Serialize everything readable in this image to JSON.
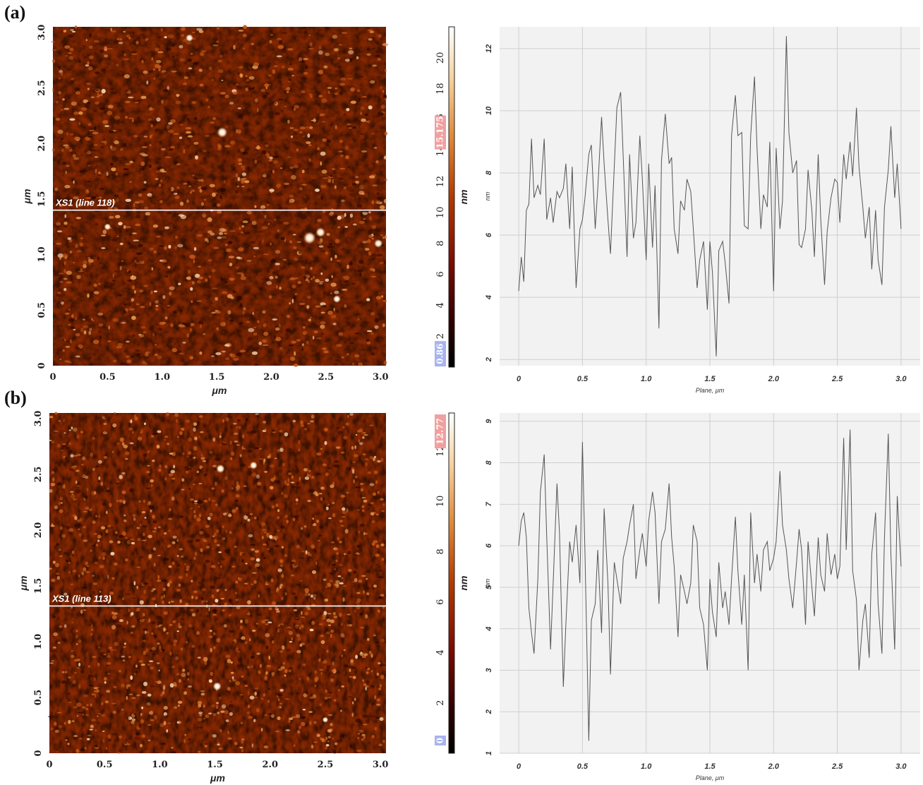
{
  "figure": {
    "panels": [
      {
        "label": "(a)",
        "afm": {
          "x_ticks": [
            "0",
            "0.5",
            "1.0",
            "1.5",
            "2.0",
            "2.5",
            "3.0"
          ],
          "y_ticks": [
            "0",
            "0.5",
            "1.0",
            "1.5",
            "2.0",
            "2.5",
            "3.0"
          ],
          "xlabel": "μm",
          "ylabel": "μm",
          "line_label": "XS1 (line 118)",
          "line_position_um": 1.4,
          "seed": 11,
          "bright_spots": [
            {
              "x_um": 1.55,
              "y_um": 2.1,
              "size": 1.2
            },
            {
              "x_um": 2.35,
              "y_um": 1.15,
              "size": 1.4
            },
            {
              "x_um": 2.45,
              "y_um": 1.2,
              "size": 1.1
            },
            {
              "x_um": 2.98,
              "y_um": 1.1,
              "size": 1.0
            },
            {
              "x_um": 1.25,
              "y_um": 2.95,
              "size": 0.9
            },
            {
              "x_um": 0.5,
              "y_um": 1.25,
              "size": 0.8
            },
            {
              "x_um": 2.6,
              "y_um": 0.6,
              "size": 0.9
            }
          ]
        },
        "colorbar": {
          "ticks": [
            "2",
            "4",
            "6",
            "8",
            "10",
            "12",
            "14",
            "16",
            "18",
            "20"
          ],
          "label": "nm",
          "max_value": 22,
          "high_marker": "15.175",
          "low_marker": "0.86"
        },
        "profile_chart": {
          "xlabel": "Plane, μm",
          "ylabel": "nm",
          "x_ticks": [
            "0",
            "0.5",
            "1.0",
            "1.5",
            "2.0",
            "2.5",
            "3.0"
          ],
          "y_ticks": [
            "2",
            "4",
            "6",
            "8",
            "10",
            "12"
          ]
        }
      },
      {
        "label": "(b)",
        "afm": {
          "x_ticks": [
            "0",
            "0.5",
            "1.0",
            "1.5",
            "2.0",
            "2.5",
            "3.0"
          ],
          "y_ticks": [
            "0",
            "0.5",
            "1.0",
            "1.5",
            "2.0",
            "2.5",
            "3.0"
          ],
          "xlabel": "μm",
          "ylabel": "μm",
          "line_label": "XS1 (line 113)",
          "line_position_um": 1.32,
          "seed": 29,
          "bright_spots": [
            {
              "x_um": 1.55,
              "y_um": 2.55,
              "size": 1.0
            },
            {
              "x_um": 1.85,
              "y_um": 2.58,
              "size": 0.9
            },
            {
              "x_um": 1.52,
              "y_um": 0.6,
              "size": 1.0
            },
            {
              "x_um": 2.5,
              "y_um": 0.3,
              "size": 0.7
            }
          ]
        },
        "colorbar": {
          "ticks": [
            "2",
            "4",
            "6",
            "8",
            "10",
            "12"
          ],
          "label": "nm",
          "max_value": 13.5,
          "high_marker": "12.77",
          "low_marker": "0"
        },
        "profile_chart": {
          "xlabel": "Plane, μm",
          "ylabel": "nm",
          "x_ticks": [
            "0",
            "0.5",
            "1.0",
            "1.5",
            "2.0",
            "2.5",
            "3.0"
          ],
          "y_ticks": [
            "1",
            "2",
            "3",
            "4",
            "5",
            "6",
            "7",
            "8",
            "9"
          ]
        }
      }
    ]
  },
  "chart_data": [
    {
      "type": "line",
      "title": "",
      "xlabel": "Plane, μm",
      "ylabel": "nm",
      "xlim": [
        0,
        3.0
      ],
      "ylim": [
        1.8,
        12.7
      ],
      "grid": true,
      "x": [
        0.0,
        0.02,
        0.04,
        0.06,
        0.08,
        0.1,
        0.12,
        0.15,
        0.17,
        0.2,
        0.22,
        0.25,
        0.27,
        0.3,
        0.32,
        0.35,
        0.37,
        0.4,
        0.42,
        0.45,
        0.48,
        0.5,
        0.52,
        0.55,
        0.57,
        0.6,
        0.62,
        0.65,
        0.67,
        0.7,
        0.72,
        0.75,
        0.77,
        0.8,
        0.82,
        0.85,
        0.87,
        0.9,
        0.92,
        0.95,
        0.97,
        1.0,
        1.02,
        1.05,
        1.07,
        1.1,
        1.12,
        1.15,
        1.18,
        1.2,
        1.22,
        1.25,
        1.27,
        1.3,
        1.32,
        1.35,
        1.37,
        1.4,
        1.42,
        1.45,
        1.48,
        1.5,
        1.52,
        1.55,
        1.57,
        1.6,
        1.62,
        1.65,
        1.67,
        1.7,
        1.72,
        1.75,
        1.77,
        1.8,
        1.82,
        1.85,
        1.87,
        1.9,
        1.92,
        1.95,
        1.97,
        2.0,
        2.02,
        2.05,
        2.07,
        2.1,
        2.12,
        2.15,
        2.18,
        2.2,
        2.22,
        2.25,
        2.27,
        2.3,
        2.32,
        2.35,
        2.37,
        2.4,
        2.42,
        2.45,
        2.48,
        2.5,
        2.52,
        2.55,
        2.57,
        2.6,
        2.62,
        2.65,
        2.67,
        2.7,
        2.72,
        2.75,
        2.77,
        2.8,
        2.82,
        2.85,
        2.87,
        2.9,
        2.92,
        2.95,
        2.97,
        3.0
      ],
      "series": [
        {
          "values": [
            4.2,
            5.3,
            4.5,
            6.8,
            7.0,
            9.1,
            7.2,
            7.6,
            7.3,
            9.1,
            6.5,
            7.2,
            6.4,
            7.4,
            7.2,
            7.5,
            8.3,
            6.2,
            8.2,
            4.3,
            6.2,
            6.5,
            7.2,
            8.6,
            8.9,
            6.2,
            7.5,
            9.8,
            8.3,
            6.5,
            5.4,
            8.2,
            10.1,
            10.6,
            8.5,
            5.3,
            8.6,
            5.9,
            6.4,
            9.2,
            7.8,
            5.2,
            8.3,
            5.6,
            7.6,
            3.0,
            8.4,
            9.9,
            8.3,
            8.5,
            6.2,
            5.4,
            7.1,
            6.8,
            7.8,
            7.4,
            6.2,
            4.3,
            5.2,
            5.8,
            3.6,
            5.8,
            4.8,
            2.1,
            5.5,
            5.8,
            5.1,
            3.8,
            9.2,
            10.5,
            9.2,
            9.3,
            6.3,
            6.2,
            9.2,
            11.1,
            8.8,
            6.2,
            7.3,
            6.9,
            9.0,
            4.2,
            8.8,
            6.2,
            7.1,
            12.4,
            9.3,
            8.0,
            8.4,
            5.7,
            5.6,
            6.2,
            8.1,
            6.8,
            5.3,
            8.6,
            6.5,
            4.4,
            6.1,
            7.2,
            7.8,
            7.7,
            6.4,
            8.6,
            7.8,
            9.0,
            7.9,
            10.1,
            8.2,
            6.9,
            5.9,
            6.9,
            4.9,
            6.8,
            5.2,
            4.4,
            6.9,
            8.1,
            9.5,
            7.2,
            8.3,
            6.2
          ]
        }
      ]
    },
    {
      "type": "line",
      "title": "",
      "xlabel": "Plane, μm",
      "ylabel": "nm",
      "xlim": [
        0,
        3.0
      ],
      "ylim": [
        1,
        9.2
      ],
      "grid": true,
      "x": [
        0.0,
        0.02,
        0.04,
        0.06,
        0.08,
        0.1,
        0.12,
        0.15,
        0.17,
        0.2,
        0.22,
        0.25,
        0.27,
        0.3,
        0.32,
        0.35,
        0.37,
        0.4,
        0.42,
        0.45,
        0.48,
        0.5,
        0.52,
        0.55,
        0.57,
        0.6,
        0.62,
        0.65,
        0.67,
        0.7,
        0.72,
        0.75,
        0.77,
        0.8,
        0.82,
        0.85,
        0.87,
        0.9,
        0.92,
        0.95,
        0.97,
        1.0,
        1.02,
        1.05,
        1.07,
        1.1,
        1.12,
        1.15,
        1.18,
        1.2,
        1.22,
        1.25,
        1.27,
        1.3,
        1.32,
        1.35,
        1.37,
        1.4,
        1.42,
        1.45,
        1.48,
        1.5,
        1.52,
        1.55,
        1.57,
        1.6,
        1.62,
        1.65,
        1.67,
        1.7,
        1.72,
        1.75,
        1.77,
        1.8,
        1.82,
        1.85,
        1.87,
        1.9,
        1.92,
        1.95,
        1.97,
        2.0,
        2.02,
        2.05,
        2.07,
        2.1,
        2.12,
        2.15,
        2.18,
        2.2,
        2.22,
        2.25,
        2.27,
        2.3,
        2.32,
        2.35,
        2.37,
        2.4,
        2.42,
        2.45,
        2.48,
        2.5,
        2.52,
        2.55,
        2.57,
        2.6,
        2.62,
        2.65,
        2.67,
        2.7,
        2.72,
        2.75,
        2.77,
        2.8,
        2.82,
        2.85,
        2.87,
        2.9,
        2.92,
        2.95,
        2.97,
        3.0
      ],
      "series": [
        {
          "values": [
            6.0,
            6.6,
            6.8,
            6.2,
            4.5,
            3.9,
            3.4,
            5.2,
            7.3,
            8.2,
            6.2,
            3.5,
            5.1,
            7.5,
            6.3,
            2.6,
            4.1,
            6.1,
            5.6,
            6.5,
            5.1,
            8.5,
            5.8,
            1.3,
            4.2,
            4.6,
            5.9,
            3.9,
            6.9,
            5.1,
            2.9,
            5.6,
            5.2,
            4.6,
            5.7,
            6.1,
            6.5,
            7.0,
            5.2,
            5.9,
            6.3,
            5.5,
            6.6,
            7.3,
            6.8,
            4.6,
            6.1,
            6.4,
            7.5,
            6.2,
            5.5,
            3.8,
            5.3,
            4.9,
            4.6,
            5.1,
            6.5,
            6.1,
            4.5,
            4.1,
            3.0,
            5.2,
            4.4,
            3.8,
            5.6,
            4.5,
            4.9,
            4.1,
            5.2,
            6.7,
            5.4,
            4.1,
            5.3,
            3.0,
            6.8,
            5.1,
            5.8,
            4.9,
            5.9,
            6.1,
            5.4,
            5.7,
            6.1,
            7.8,
            6.5,
            5.9,
            5.2,
            4.5,
            5.6,
            6.4,
            5.9,
            4.1,
            6.1,
            5.0,
            4.3,
            6.2,
            5.3,
            4.9,
            6.3,
            5.3,
            5.8,
            5.2,
            5.5,
            8.6,
            5.9,
            8.8,
            5.4,
            4.7,
            3.0,
            4.2,
            4.6,
            3.3,
            5.8,
            6.8,
            4.6,
            3.4,
            6.2,
            8.7,
            5.8,
            3.5,
            7.2,
            5.5
          ]
        }
      ]
    }
  ]
}
